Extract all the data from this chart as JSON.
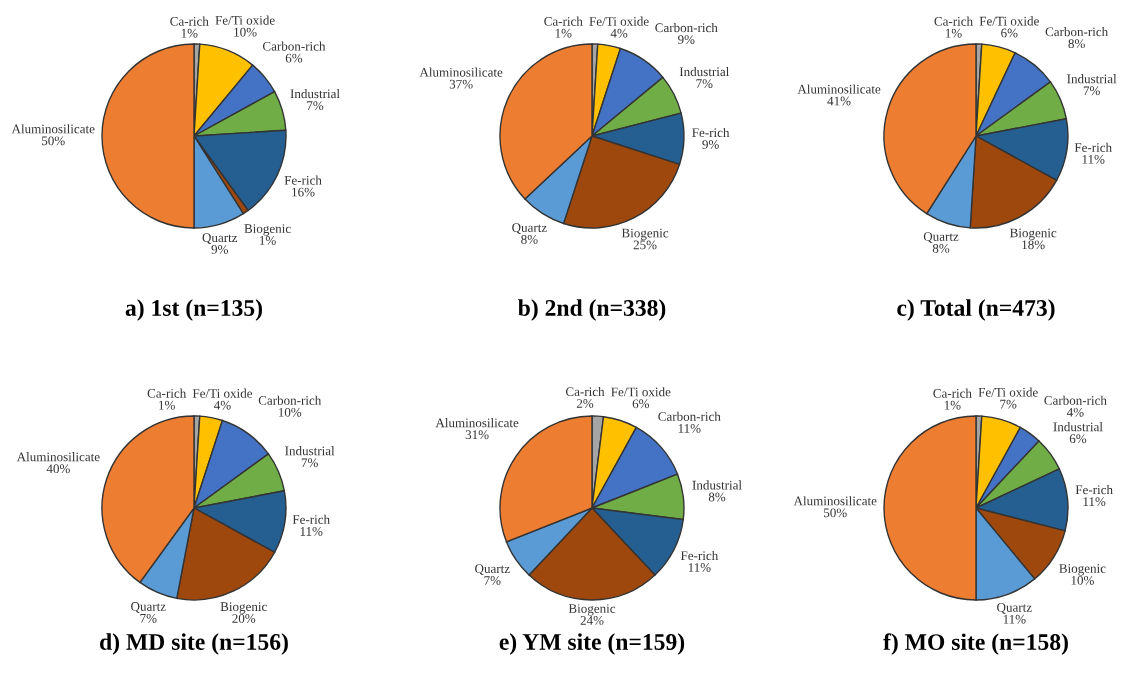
{
  "chart_data": [
    {
      "type": "pie",
      "title": "a) 1st (n=135)",
      "categories": [
        "Ca-rich",
        "Fe/Ti oxide",
        "Carbon-rich",
        "Industrial",
        "Fe-rich",
        "Biogenic",
        "Quartz",
        "Aluminosilicate"
      ],
      "values": [
        1,
        10,
        6,
        7,
        16,
        1,
        9,
        50
      ],
      "value_labels": [
        "1%",
        "10%",
        "6%",
        "7%",
        "16%",
        "1%",
        "9%",
        "50%"
      ],
      "colors": [
        "#a5a5a5",
        "#ffc000",
        "#4472c4",
        "#70ad47",
        "#255e91",
        "#9e480e",
        "#5b9bd5",
        "#ed7d31"
      ]
    },
    {
      "type": "pie",
      "title": "b) 2nd (n=338)",
      "categories": [
        "Ca-rich",
        "Fe/Ti oxide",
        "Carbon-rich",
        "Industrial",
        "Fe-rich",
        "Biogenic",
        "Quartz",
        "Aluminosilicate"
      ],
      "values": [
        1,
        4,
        9,
        7,
        9,
        25,
        8,
        37
      ],
      "value_labels": [
        "1%",
        "4%",
        "9%",
        "7%",
        "9%",
        "25%",
        "8%",
        "37%"
      ],
      "colors": [
        "#a5a5a5",
        "#ffc000",
        "#4472c4",
        "#70ad47",
        "#255e91",
        "#9e480e",
        "#5b9bd5",
        "#ed7d31"
      ]
    },
    {
      "type": "pie",
      "title": "c) Total (n=473)",
      "categories": [
        "Ca-rich",
        "Fe/Ti oxide",
        "Carbon-rich",
        "Industrial",
        "Fe-rich",
        "Biogenic",
        "Quartz",
        "Aluminosilicate"
      ],
      "values": [
        1,
        6,
        8,
        7,
        11,
        18,
        8,
        41
      ],
      "value_labels": [
        "1%",
        "6%",
        "8%",
        "7%",
        "11%",
        "18%",
        "8%",
        "41%"
      ],
      "colors": [
        "#a5a5a5",
        "#ffc000",
        "#4472c4",
        "#70ad47",
        "#255e91",
        "#9e480e",
        "#5b9bd5",
        "#ed7d31"
      ]
    },
    {
      "type": "pie",
      "title": "d) MD site (n=156)",
      "categories": [
        "Ca-rich",
        "Fe/Ti oxide",
        "Carbon-rich",
        "Industrial",
        "Fe-rich",
        "Biogenic",
        "Quartz",
        "Aluminosilicate"
      ],
      "values": [
        1,
        4,
        10,
        7,
        11,
        20,
        7,
        40
      ],
      "value_labels": [
        "1%",
        "4%",
        "10%",
        "7%",
        "11%",
        "20%",
        "7%",
        "40%"
      ],
      "colors": [
        "#a5a5a5",
        "#ffc000",
        "#4472c4",
        "#70ad47",
        "#255e91",
        "#9e480e",
        "#5b9bd5",
        "#ed7d31"
      ]
    },
    {
      "type": "pie",
      "title": "e) YM site (n=159)",
      "categories": [
        "Ca-rich",
        "Fe/Ti oxide",
        "Carbon-rich",
        "Industrial",
        "Fe-rich",
        "Biogenic",
        "Quartz",
        "Aluminosilicate"
      ],
      "values": [
        2,
        6,
        11,
        8,
        11,
        24,
        7,
        31
      ],
      "value_labels": [
        "2%",
        "6%",
        "11%",
        "8%",
        "11%",
        "24%",
        "7%",
        "31%"
      ],
      "colors": [
        "#a5a5a5",
        "#ffc000",
        "#4472c4",
        "#70ad47",
        "#255e91",
        "#9e480e",
        "#5b9bd5",
        "#ed7d31"
      ]
    },
    {
      "type": "pie",
      "title": "f) MO site (n=158)",
      "categories": [
        "Ca-rich",
        "Fe/Ti oxide",
        "Carbon-rich",
        "Industrial",
        "Fe-rich",
        "Biogenic",
        "Quartz",
        "Aluminosilicate"
      ],
      "values": [
        1,
        7,
        4,
        6,
        11,
        10,
        11,
        50
      ],
      "value_labels": [
        "1%",
        "7%",
        "4%",
        "6%",
        "11%",
        "10%",
        "11%",
        "50%"
      ],
      "colors": [
        "#a5a5a5",
        "#ffc000",
        "#4472c4",
        "#70ad47",
        "#255e91",
        "#9e480e",
        "#5b9bd5",
        "#ed7d31"
      ]
    }
  ]
}
